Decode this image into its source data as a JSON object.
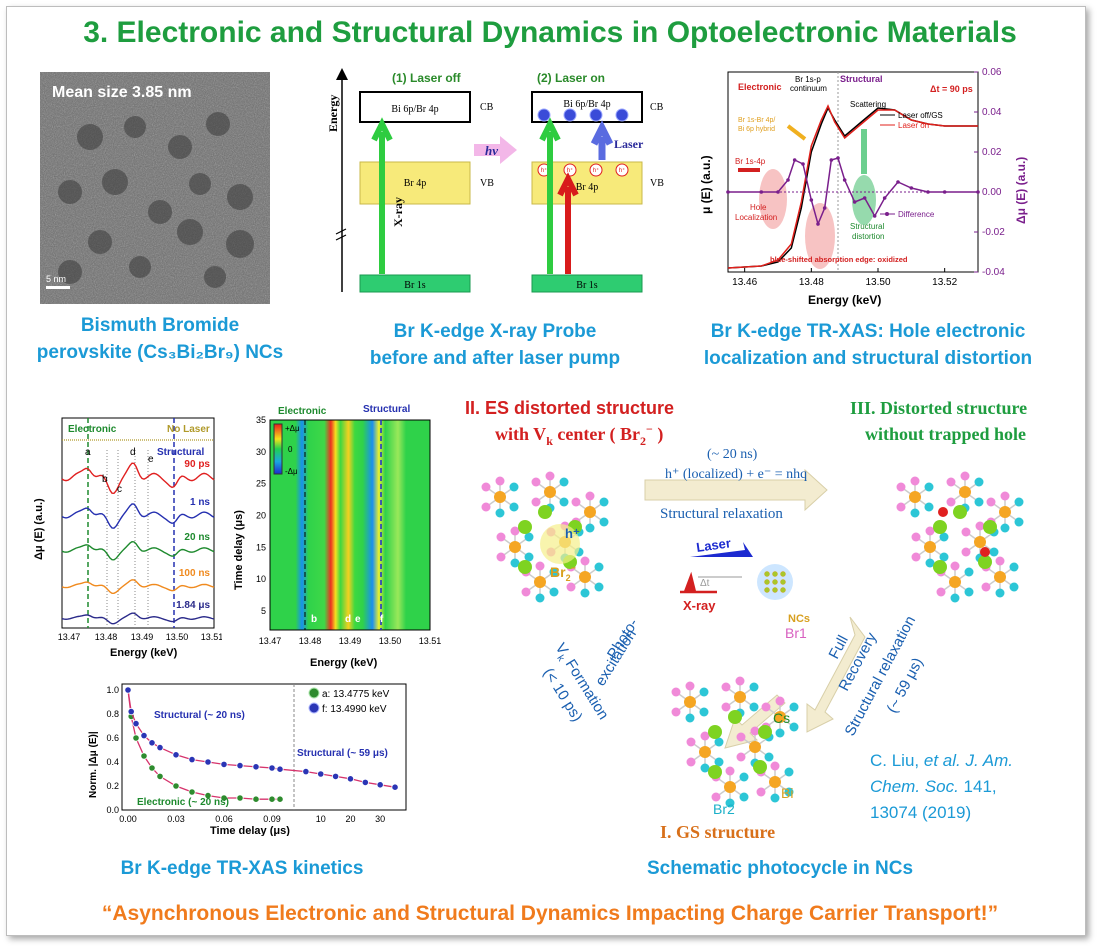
{
  "title": "3. Electronic and Structural Dynamics in Optoelectronic Materials",
  "tem": {
    "label": "Mean size 3.85 nm",
    "scale": "5 nm",
    "caption_line1": "Bismuth Bromide",
    "caption_line2": "perovskite (Cs₃Bi₂Br₉) NCs"
  },
  "probe": {
    "panel1": "(1) Laser off",
    "panel2": "(2) Laser on",
    "energy": "Energy",
    "cb_label": "Bi 6p/Br 4p",
    "vb_label": "Br 4p",
    "core_label": "Br 1s",
    "cb": "CB",
    "vb": "VB",
    "hv": "hv",
    "laser": "Laser",
    "xray": "X-ray",
    "hole": "h⁺",
    "caption_line1": "Br K-edge X-ray Probe",
    "caption_line2": "before and after laser pump"
  },
  "trxas": {
    "electronic": "Electronic",
    "structural": "Structural",
    "continuum1": "Br 1s-p",
    "continuum2": "continuum",
    "scattering": "Scattering",
    "dt": "Δt = 90 ps",
    "hybrid1": "Br 1s-Br 4p/",
    "hybrid2": "Bi 6p hybrid",
    "br1s4p": "Br 1s-4p",
    "hole1": "Hole",
    "hole2": "Localization",
    "sd1": "Structural",
    "sd2": "distortion",
    "blue": "blue-shifted absorption edge: oxidized",
    "legend_off": "Laser off/GS",
    "legend_on": "Laser on",
    "legend_diff": "Difference",
    "ylabel_left": "μ (E) (a.u.)",
    "ylabel_right": "Δμ (E) (a.u.)",
    "xlabel": "Energy (keV)",
    "xticks": [
      "13.46",
      "13.48",
      "13.50",
      "13.52"
    ],
    "yticks_right": [
      "0.06",
      "0.04",
      "0.02",
      "0.00",
      "-0.02",
      "-0.04"
    ],
    "caption_line1": "Br K-edge TR-XAS: Hole electronic",
    "caption_line2": "localization and structural distortion",
    "chart_data": {
      "type": "line",
      "xlabel": "Energy (keV)",
      "ylabel": "μ (E) (a.u.)",
      "y2label": "Δμ (E) (a.u.)",
      "xlim": [
        13.455,
        13.53
      ],
      "y2lim": [
        -0.04,
        0.06
      ],
      "series": [
        {
          "name": "Laser off/GS",
          "color": "#000000",
          "x": [
            13.455,
            13.465,
            13.47,
            13.474,
            13.477,
            13.48,
            13.483,
            13.485,
            13.487,
            13.49,
            13.495,
            13.5,
            13.505,
            13.51,
            13.515,
            13.52,
            13.53
          ],
          "y": [
            -0.038,
            -0.037,
            -0.035,
            -0.028,
            -0.008,
            0.02,
            0.034,
            0.042,
            0.036,
            0.028,
            0.035,
            0.042,
            0.041,
            0.036,
            0.034,
            0.033,
            0.033
          ]
        },
        {
          "name": "Laser on",
          "color": "#e0201b",
          "x": [
            13.455,
            13.465,
            13.47,
            13.474,
            13.477,
            13.48,
            13.483,
            13.485,
            13.487,
            13.49,
            13.495,
            13.5,
            13.505,
            13.51,
            13.515,
            13.52,
            13.53
          ],
          "y": [
            -0.038,
            -0.037,
            -0.034,
            -0.026,
            -0.005,
            0.023,
            0.036,
            0.043,
            0.035,
            0.027,
            0.034,
            0.041,
            0.041,
            0.036,
            0.034,
            0.033,
            0.033
          ]
        },
        {
          "name": "Difference",
          "color": "#7a1f8c",
          "x": [
            13.455,
            13.465,
            13.47,
            13.473,
            13.475,
            13.4775,
            13.48,
            13.482,
            13.484,
            13.486,
            13.488,
            13.49,
            13.493,
            13.496,
            13.499,
            13.502,
            13.506,
            13.51,
            13.515,
            13.52,
            13.53
          ],
          "y": [
            0.0,
            0.0,
            0.0,
            0.006,
            0.016,
            0.014,
            -0.004,
            -0.016,
            -0.008,
            0.016,
            0.017,
            0.006,
            -0.005,
            -0.003,
            -0.012,
            -0.003,
            0.005,
            0.002,
            0.0,
            0.0,
            0.0
          ]
        }
      ]
    }
  },
  "kinetics_traces": {
    "electronic": "Electronic",
    "no_laser": "No Laser",
    "structural": "Structural",
    "peaks": [
      "a",
      "b",
      "c",
      "d",
      "e"
    ],
    "delays": [
      "90 ps",
      "1 ns",
      "20 ns",
      "100 ns",
      "1.84 μs"
    ],
    "delay_colors": [
      "#e02020",
      "#2530b0",
      "#1e8a2e",
      "#f08a1e",
      "#2a2a8a"
    ],
    "ylabel": "Δμ (E) (a.u.)",
    "xlabel": "Energy (keV)",
    "xticks": [
      "13.47",
      "13.48",
      "13.49",
      "13.50",
      "13.51"
    ]
  },
  "map": {
    "electronic": "Electronic",
    "structural": "Structural",
    "cb_top": "+Δμ",
    "cb_mid": "0",
    "cb_bot": "-Δμ",
    "ylabel": "Time delay (μs)",
    "xlabel": "Energy (keV)",
    "yticks": [
      "35",
      "30",
      "25",
      "20",
      "15",
      "10",
      "5"
    ],
    "xticks": [
      "13.47",
      "13.48",
      "13.49",
      "13.50",
      "13.51"
    ],
    "letters": [
      "b",
      "d",
      "e",
      "f"
    ]
  },
  "kinetics": {
    "legend_a": "a: 13.4775 keV",
    "legend_f": "f: 13.4990 keV",
    "struct20": "Structural (~ 20 ns)",
    "struct59": "Structural (~ 59 μs)",
    "elec20": "Electronic (~ 20 ns)",
    "ylabel": "Norm. |Δμ (E)|",
    "xlabel": "Time delay (μs)",
    "yticks": [
      "1.0",
      "0.8",
      "0.6",
      "0.4",
      "0.2",
      "0.0"
    ],
    "xticks_left": [
      "0.00",
      "0.03",
      "0.06",
      "0.09"
    ],
    "xticks_right": [
      "10",
      "20",
      "30"
    ],
    "caption": "Br K-edge TR-XAS kinetics",
    "chart_data": {
      "type": "scatter",
      "xlabel": "Time delay (μs)",
      "ylabel": "Norm. |Δμ (E)|",
      "ylim": [
        0,
        1.05
      ],
      "series": [
        {
          "name": "a: 13.4775 keV",
          "color": "#2e8b2e",
          "x": [
            0.0,
            0.002,
            0.005,
            0.01,
            0.015,
            0.02,
            0.03,
            0.04,
            0.05,
            0.06,
            0.07,
            0.08,
            0.09,
            0.095
          ],
          "y": [
            1.0,
            0.78,
            0.6,
            0.45,
            0.35,
            0.28,
            0.2,
            0.15,
            0.12,
            0.1,
            0.1,
            0.09,
            0.09,
            0.09
          ]
        },
        {
          "name": "f: 13.4990 keV",
          "color": "#2b35b5",
          "x": [
            0.0,
            0.002,
            0.005,
            0.01,
            0.015,
            0.02,
            0.03,
            0.04,
            0.05,
            0.06,
            0.07,
            0.08,
            0.09,
            0.095,
            5,
            10,
            15,
            20,
            25,
            30,
            35
          ],
          "y": [
            1.0,
            0.82,
            0.72,
            0.62,
            0.56,
            0.52,
            0.46,
            0.42,
            0.4,
            0.38,
            0.37,
            0.36,
            0.35,
            0.34,
            0.32,
            0.3,
            0.28,
            0.26,
            0.23,
            0.21,
            0.19
          ]
        }
      ]
    }
  },
  "photocycle": {
    "II_line1": "II. ES distorted structure",
    "II_line2": "with V",
    "II_sub": "k",
    "II_tail": " center ( Br",
    "II_br_sub": "2",
    "II_br_sup": "−",
    "II_end": " )",
    "III_line1": "III. Distorted structure",
    "III_line2": "without trapped hole",
    "I_label": "I. GS structure",
    "time20": "(~ 20 ns)",
    "equation": "h⁺ (localized) + e⁻ = nhq",
    "relax": "Structural relaxation",
    "laser": "Laser",
    "dt": "Δt",
    "xray": "X-ray",
    "ncs": "NCs",
    "photo1": "Photo-",
    "photo2": "excitation",
    "vk1": "V",
    "vk_sub": "k",
    "vk2": " Formation",
    "vk3": "(< 10 ps)",
    "full1": "Full",
    "full2": "Recovery",
    "sr1": "Structural relaxation",
    "sr2": "(~ 59 μs)",
    "br1": "Br1",
    "br2": "Br2",
    "cs": "Cs",
    "bi": "Bi",
    "hplus": "h⁺",
    "br2minus": "Br",
    "caption": "Schematic photocycle in NCs"
  },
  "citation": {
    "line1_pre": "C. Liu, ",
    "line1_it": "et al. J. Am.",
    "line2_it": "Chem. Soc.",
    "line2_post": " 141,",
    "line3": "13074 (2019)"
  },
  "quote": "“Asynchronous Electronic and Structural Dynamics Impacting Charge Carrier Transport!”"
}
